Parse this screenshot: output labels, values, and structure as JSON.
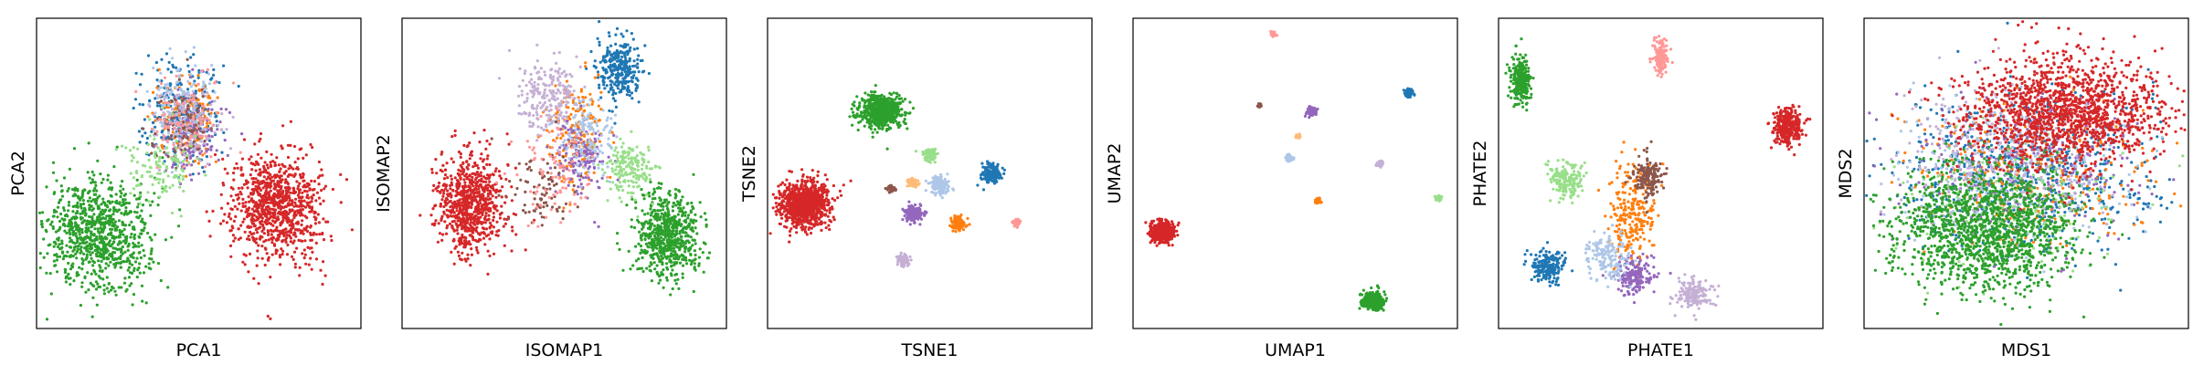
{
  "panels": [
    {
      "xlabel": "PCA1",
      "ylabel": "PCA2",
      "chart_data": {
        "type": "scatter",
        "xlim": [
          0,
          100
        ],
        "ylim": [
          0,
          100
        ],
        "clusters": [
          {
            "color": "#2ca02c",
            "cx": 19,
            "cy": 30,
            "sx": 8,
            "sy": 9,
            "n": 900
          },
          {
            "color": "#d62728",
            "cx": 74,
            "cy": 40,
            "sx": 7,
            "sy": 9,
            "n": 900
          },
          {
            "color": "#1f77b4",
            "cx": 44,
            "cy": 70,
            "sx": 5.5,
            "sy": 8,
            "n": 260
          },
          {
            "color": "#ff7f0e",
            "cx": 47,
            "cy": 67,
            "sx": 5,
            "sy": 7,
            "n": 140
          },
          {
            "color": "#9467bd",
            "cx": 48,
            "cy": 63,
            "sx": 5,
            "sy": 7,
            "n": 140
          },
          {
            "color": "#aec7e8",
            "cx": 45,
            "cy": 72,
            "sx": 5,
            "sy": 7,
            "n": 140
          },
          {
            "color": "#c5b0d5",
            "cx": 46,
            "cy": 66,
            "sx": 5,
            "sy": 6,
            "n": 120
          },
          {
            "color": "#8c564b",
            "cx": 45,
            "cy": 64,
            "sx": 5,
            "sy": 6,
            "n": 90
          },
          {
            "color": "#ff9896",
            "cx": 46,
            "cy": 68,
            "sx": 5,
            "sy": 6,
            "n": 90
          },
          {
            "color": "#98df8a",
            "cx": 38,
            "cy": 52,
            "sx": 5,
            "sy": 6,
            "n": 120
          }
        ]
      }
    },
    {
      "xlabel": "ISOMAP1",
      "ylabel": "ISOMAP2",
      "chart_data": {
        "type": "scatter",
        "xlim": [
          0,
          100
        ],
        "ylim": [
          0,
          100
        ],
        "clusters": [
          {
            "color": "#d62728",
            "cx": 21,
            "cy": 40,
            "sx": 5,
            "sy": 8,
            "n": 750
          },
          {
            "color": "#2ca02c",
            "cx": 82,
            "cy": 30,
            "sx": 5,
            "sy": 7,
            "n": 650
          },
          {
            "color": "#1f77b4",
            "cx": 67,
            "cy": 84,
            "sx": 3.5,
            "sy": 5,
            "n": 300
          },
          {
            "color": "#ff7f0e",
            "cx": 53,
            "cy": 63,
            "sx": 4,
            "sy": 8,
            "n": 180
          },
          {
            "color": "#c5b0d5",
            "cx": 45,
            "cy": 75,
            "sx": 5,
            "sy": 6,
            "n": 220
          },
          {
            "color": "#9467bd",
            "cx": 55,
            "cy": 55,
            "sx": 4,
            "sy": 6,
            "n": 150
          },
          {
            "color": "#98df8a",
            "cx": 70,
            "cy": 52,
            "sx": 4,
            "sy": 5,
            "n": 180
          },
          {
            "color": "#aec7e8",
            "cx": 57,
            "cy": 62,
            "sx": 4,
            "sy": 6,
            "n": 130
          },
          {
            "color": "#8c564b",
            "cx": 43,
            "cy": 45,
            "sx": 5,
            "sy": 6,
            "n": 90
          },
          {
            "color": "#ff9896",
            "cx": 47,
            "cy": 50,
            "sx": 6,
            "sy": 8,
            "n": 90
          }
        ]
      }
    },
    {
      "xlabel": "TSNE1",
      "ylabel": "TSNE2",
      "chart_data": {
        "type": "scatter",
        "xlim": [
          0,
          100
        ],
        "ylim": [
          0,
          100
        ],
        "clusters": [
          {
            "color": "#d62728",
            "cx": 11,
            "cy": 40,
            "sx": 3.8,
            "sy": 3.6,
            "n": 950
          },
          {
            "color": "#2ca02c",
            "cx": 35,
            "cy": 70,
            "sx": 3.2,
            "sy": 2.7,
            "n": 600
          },
          {
            "color": "#1f77b4",
            "cx": 69,
            "cy": 50,
            "sx": 1.5,
            "sy": 1.5,
            "n": 160
          },
          {
            "color": "#9467bd",
            "cx": 45,
            "cy": 37,
            "sx": 1.5,
            "sy": 1.2,
            "n": 160
          },
          {
            "color": "#aec7e8",
            "cx": 53,
            "cy": 46,
            "sx": 1.5,
            "sy": 1.4,
            "n": 140
          },
          {
            "color": "#ff7f0e",
            "cx": 59,
            "cy": 34,
            "sx": 1.2,
            "sy": 1.1,
            "n": 110
          },
          {
            "color": "#98df8a",
            "cx": 50,
            "cy": 56,
            "sx": 1.0,
            "sy": 1.0,
            "n": 90
          },
          {
            "color": "#c5b0d5",
            "cx": 42,
            "cy": 22,
            "sx": 1.0,
            "sy": 0.9,
            "n": 80
          },
          {
            "color": "#ffbb78",
            "cx": 45,
            "cy": 47,
            "sx": 0.8,
            "sy": 0.8,
            "n": 60
          },
          {
            "color": "#8c564b",
            "cx": 38,
            "cy": 45,
            "sx": 0.6,
            "sy": 0.6,
            "n": 40
          },
          {
            "color": "#ff9896",
            "cx": 77,
            "cy": 34,
            "sx": 0.6,
            "sy": 0.5,
            "n": 40
          }
        ]
      }
    },
    {
      "xlabel": "UMAP1",
      "ylabel": "UMAP2",
      "chart_data": {
        "type": "scatter",
        "xlim": [
          0,
          100
        ],
        "ylim": [
          0,
          100
        ],
        "clusters": [
          {
            "color": "#d62728",
            "cx": 9,
            "cy": 31,
            "sx": 1.8,
            "sy": 1.6,
            "n": 500
          },
          {
            "color": "#2ca02c",
            "cx": 74,
            "cy": 9,
            "sx": 1.6,
            "sy": 1.4,
            "n": 350
          },
          {
            "color": "#1f77b4",
            "cx": 85,
            "cy": 76,
            "sx": 0.7,
            "sy": 0.6,
            "n": 80
          },
          {
            "color": "#9467bd",
            "cx": 55,
            "cy": 70,
            "sx": 0.8,
            "sy": 0.7,
            "n": 80
          },
          {
            "color": "#aec7e8",
            "cx": 48,
            "cy": 55,
            "sx": 0.6,
            "sy": 0.5,
            "n": 50
          },
          {
            "color": "#ff7f0e",
            "cx": 57,
            "cy": 41,
            "sx": 0.5,
            "sy": 0.5,
            "n": 40
          },
          {
            "color": "#98df8a",
            "cx": 94,
            "cy": 42,
            "sx": 0.6,
            "sy": 0.4,
            "n": 40
          },
          {
            "color": "#c5b0d5",
            "cx": 76,
            "cy": 53,
            "sx": 0.5,
            "sy": 0.5,
            "n": 35
          },
          {
            "color": "#ff9896",
            "cx": 43,
            "cy": 95,
            "sx": 0.5,
            "sy": 0.4,
            "n": 25
          },
          {
            "color": "#8c564b",
            "cx": 39,
            "cy": 72,
            "sx": 0.4,
            "sy": 0.3,
            "n": 20
          },
          {
            "color": "#ffbb78",
            "cx": 51,
            "cy": 62,
            "sx": 0.4,
            "sy": 0.4,
            "n": 20
          }
        ]
      }
    },
    {
      "xlabel": "PHATE1",
      "ylabel": "PHATE2",
      "chart_data": {
        "type": "scatter",
        "xlim": [
          0,
          100
        ],
        "ylim": [
          0,
          100
        ],
        "clusters": [
          {
            "color": "#2ca02c",
            "cx": 7,
            "cy": 80,
            "sx": 1.5,
            "sy": 3.5,
            "n": 280
          },
          {
            "color": "#d62728",
            "cx": 89,
            "cy": 65,
            "sx": 2.2,
            "sy": 2.8,
            "n": 300
          },
          {
            "color": "#ff9896",
            "cx": 50,
            "cy": 88,
            "sx": 1.2,
            "sy": 3,
            "n": 150
          },
          {
            "color": "#1f77b4",
            "cx": 15,
            "cy": 20,
            "sx": 2.5,
            "sy": 2.5,
            "n": 200
          },
          {
            "color": "#ff7f0e",
            "cx": 41,
            "cy": 37,
            "sx": 3.5,
            "sy": 8,
            "n": 250
          },
          {
            "color": "#98df8a",
            "cx": 21,
            "cy": 48,
            "sx": 2.5,
            "sy": 3,
            "n": 180
          },
          {
            "color": "#8c564b",
            "cx": 46,
            "cy": 49,
            "sx": 2.5,
            "sy": 3,
            "n": 160
          },
          {
            "color": "#9467bd",
            "cx": 42,
            "cy": 17,
            "sx": 3.5,
            "sy": 3,
            "n": 180
          },
          {
            "color": "#aec7e8",
            "cx": 34,
            "cy": 23,
            "sx": 3,
            "sy": 4,
            "n": 160
          },
          {
            "color": "#c5b0d5",
            "cx": 60,
            "cy": 11,
            "sx": 3,
            "sy": 2.5,
            "n": 150
          }
        ]
      }
    },
    {
      "xlabel": "MDS1",
      "ylabel": "MDS2",
      "chart_data": {
        "type": "scatter",
        "xlim": [
          0,
          100
        ],
        "ylim": [
          0,
          100
        ],
        "clusters": [
          {
            "color": "#1f77b4",
            "cx": 50,
            "cy": 50,
            "sx": 20,
            "sy": 12,
            "n": 700
          },
          {
            "color": "#ff7f0e",
            "cx": 52,
            "cy": 50,
            "sx": 20,
            "sy": 12,
            "n": 300
          },
          {
            "color": "#9467bd",
            "cx": 50,
            "cy": 52,
            "sx": 20,
            "sy": 12,
            "n": 300
          },
          {
            "color": "#aec7e8",
            "cx": 45,
            "cy": 52,
            "sx": 20,
            "sy": 12,
            "n": 300
          },
          {
            "color": "#c5b0d5",
            "cx": 40,
            "cy": 55,
            "sx": 18,
            "sy": 12,
            "n": 300
          },
          {
            "color": "#98df8a",
            "cx": 45,
            "cy": 40,
            "sx": 18,
            "sy": 10,
            "n": 200
          },
          {
            "color": "#2ca02c",
            "cx": 38,
            "cy": 32,
            "sx": 14,
            "sy": 10,
            "n": 1500
          },
          {
            "color": "#d62728",
            "cx": 62,
            "cy": 70,
            "sx": 16,
            "sy": 9,
            "n": 1500
          }
        ]
      }
    }
  ]
}
